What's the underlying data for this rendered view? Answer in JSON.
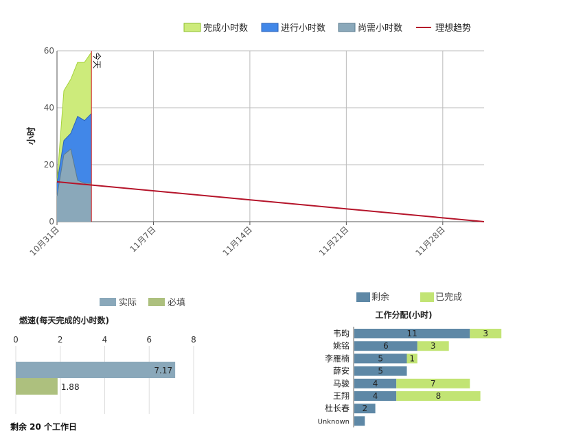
{
  "chart_data": [
    {
      "type": "area",
      "ylabel": "小时",
      "ylim": [
        0,
        60
      ],
      "yticks": [
        0,
        20,
        40,
        60
      ],
      "x_range": [
        "10月31日",
        "12月1日"
      ],
      "x_ticks": [
        "10月31日",
        "11月7日",
        "11月14日",
        "11月21日",
        "11月28日"
      ],
      "today_label": "今天",
      "today_day": 2.5,
      "grid": true,
      "legend_position": "top-right",
      "legend": [
        {
          "name": "完成小时数",
          "color": "#cdeb7b"
        },
        {
          "name": "进行小时数",
          "color": "#4187e8"
        },
        {
          "name": "尚需小时数",
          "color": "#8aa8ba"
        },
        {
          "name": "理想趋势",
          "color": "#b5142a"
        }
      ],
      "days": [
        0,
        0.5,
        1,
        1.5,
        2,
        2.5
      ],
      "series": [
        {
          "name": "尚需小时数",
          "values": [
            9,
            23.5,
            25.5,
            14.5,
            13.5,
            13.5
          ]
        },
        {
          "name": "进行小时数",
          "values": [
            13.5,
            28.5,
            31,
            37,
            35.5,
            38
          ]
        },
        {
          "name": "完成小时数",
          "values": [
            14,
            46,
            50,
            56,
            56,
            59.5
          ]
        }
      ],
      "ideal": {
        "start": 14,
        "end": 0,
        "end_day": 31
      }
    },
    {
      "type": "bar",
      "orientation": "horizontal",
      "title": "燃速(每天完成的小时数)",
      "xlim": [
        0,
        8
      ],
      "xticks": [
        0,
        2,
        4,
        6,
        8
      ],
      "legend": [
        {
          "name": "实际",
          "color": "#8aa8ba"
        },
        {
          "name": "必填",
          "color": "#adc07e"
        }
      ],
      "series": [
        {
          "name": "实际",
          "value": 7.17,
          "label": "7.17"
        },
        {
          "name": "必填",
          "value": 1.88,
          "label": "1.88"
        }
      ]
    },
    {
      "type": "bar",
      "orientation": "horizontal",
      "stacked": true,
      "title": "工作分配(小时)",
      "legend": [
        {
          "name": "剩余",
          "color": "#5e88a6"
        },
        {
          "name": "已完成",
          "color": "#c2e474"
        }
      ],
      "categories": [
        "韦昀",
        "姚铭",
        "李雁楠",
        "薛安",
        "马骏",
        "王翔",
        "杜长春",
        "Unknown"
      ],
      "series": [
        {
          "name": "剩余",
          "values": [
            11,
            6,
            5,
            5,
            4,
            4,
            2,
            1
          ],
          "labels": [
            "11",
            "6",
            "5",
            "5",
            "4",
            "4",
            "2",
            ""
          ]
        },
        {
          "name": "已完成",
          "values": [
            3,
            3,
            1,
            0,
            7,
            8,
            0,
            0
          ],
          "labels": [
            "3",
            "3",
            "1",
            "",
            "7",
            "8",
            "",
            ""
          ]
        }
      ]
    }
  ],
  "footer": {
    "remaining_text": "剩余 20 个工作日"
  }
}
